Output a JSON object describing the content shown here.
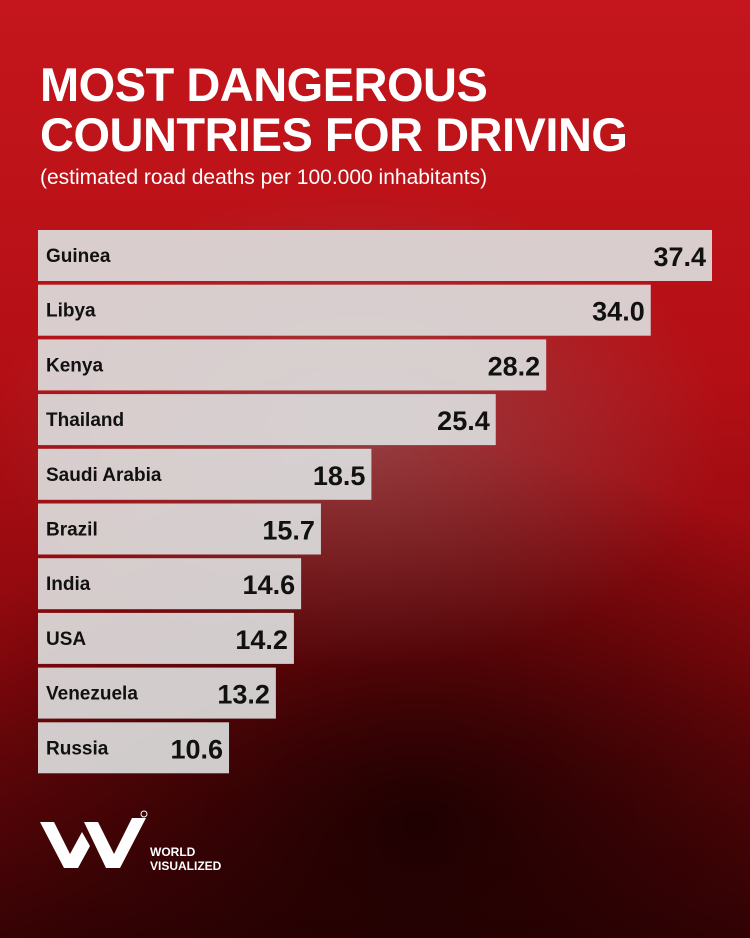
{
  "header": {
    "title": "MOST DANGEROUS COUNTRIES FOR DRIVING",
    "subtitle": "(estimated road deaths per 100.000 inhabitants)"
  },
  "brand": {
    "line1": "WORLD",
    "line2": "VISUALIZED"
  },
  "colors": {
    "background": "#b40f15",
    "bar": "#dcdcdc",
    "text": "#111111"
  },
  "chart_data": {
    "type": "bar",
    "orientation": "horizontal",
    "title": "MOST DANGEROUS COUNTRIES FOR DRIVING",
    "subtitle": "(estimated road deaths per 100.000 inhabitants)",
    "categories": [
      "Guinea",
      "Libya",
      "Kenya",
      "Thailand",
      "Saudi Arabia",
      "Brazil",
      "India",
      "USA",
      "Venezuela",
      "Russia"
    ],
    "values": [
      37.4,
      34.0,
      28.2,
      25.4,
      18.5,
      15.7,
      14.6,
      14.2,
      13.2,
      10.6
    ],
    "value_labels": [
      "37.4",
      "34.0",
      "28.2",
      "25.4",
      "18.5",
      "15.7",
      "14.6",
      "14.2",
      "13.2",
      "10.6"
    ],
    "xlim": [
      0,
      37.4
    ],
    "grid": false,
    "legend": "none"
  }
}
